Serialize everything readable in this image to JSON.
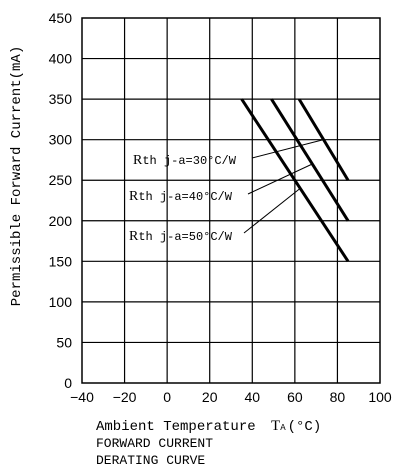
{
  "chart_data": {
    "type": "line",
    "xlabel": "Ambient Temperature",
    "xlabel_symbol": "T",
    "xlabel_sub": "A",
    "xlabel_unit": "(°C)",
    "ylabel": "Permissible Forward Current(mA)",
    "caption_line1": "FORWARD CURRENT",
    "caption_line2": "DERATING CURVE",
    "xlim": [
      -40,
      100
    ],
    "ylim": [
      0,
      450
    ],
    "x_ticks": [
      "−40",
      "−20",
      "0",
      "20",
      "40",
      "60",
      "80",
      "100"
    ],
    "x_tick_values": [
      -40,
      -20,
      0,
      20,
      40,
      60,
      80,
      100
    ],
    "y_ticks": [
      "0",
      "50",
      "100",
      "150",
      "200",
      "250",
      "300",
      "350",
      "400",
      "450"
    ],
    "y_tick_values": [
      0,
      50,
      100,
      150,
      200,
      250,
      300,
      350,
      400,
      450
    ],
    "grid": true,
    "series": [
      {
        "name": "Rth j-a=30°C/W",
        "x": [
          62,
          85
        ],
        "y": [
          350,
          250
        ],
        "label_prefix": "R",
        "label_rest": "th j-a=30°C/W"
      },
      {
        "name": "Rth j-a=40°C/W",
        "x": [
          49,
          85
        ],
        "y": [
          350,
          200
        ],
        "label_prefix": "R",
        "label_rest": "th j-a=40°C/W"
      },
      {
        "name": "Rth j-a=50°C/W",
        "x": [
          35,
          85
        ],
        "y": [
          350,
          150
        ],
        "label_prefix": "R",
        "label_rest": "th j-a=50°C/W"
      }
    ]
  }
}
